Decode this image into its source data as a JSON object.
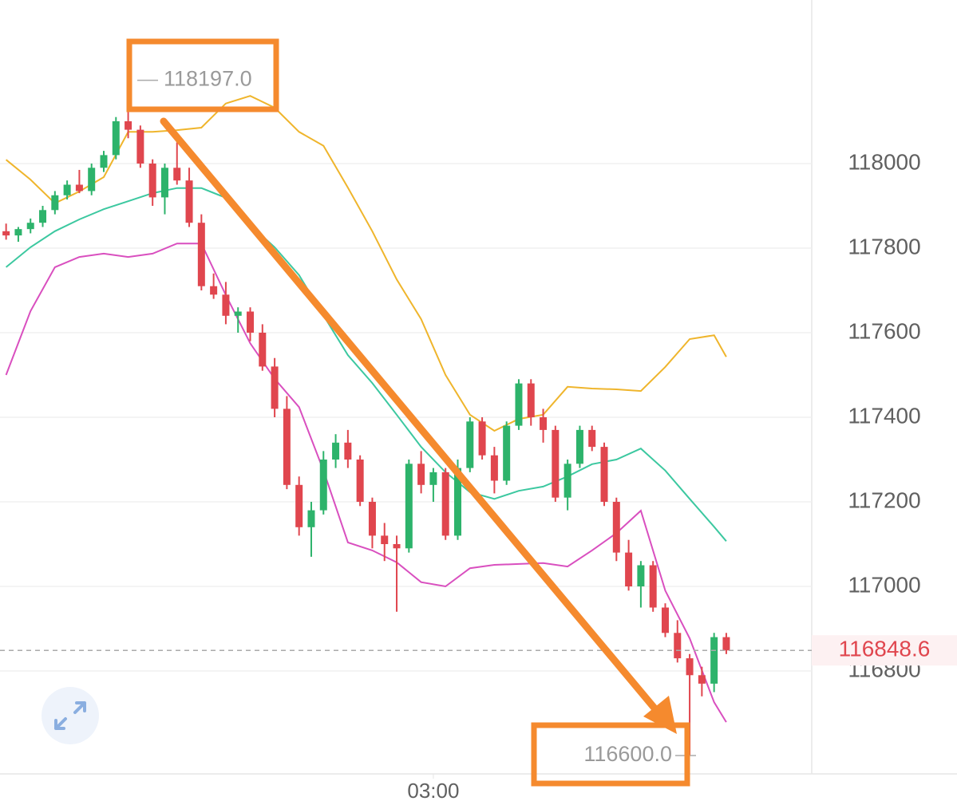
{
  "chart_data": {
    "type": "candlestick",
    "open": [
      117840,
      117830,
      117845,
      117860,
      117890,
      117925,
      117950,
      117935,
      117990,
      118020,
      118100,
      118080,
      118000,
      117920,
      117990,
      117960,
      117860,
      117710,
      117690,
      117640,
      117650,
      117600,
      117520,
      117420,
      117240,
      117140,
      117180,
      117300,
      117340,
      117300,
      117200,
      117120,
      117100,
      117090,
      117290,
      117240,
      117270,
      117120,
      117280,
      117390,
      117310,
      117250,
      117380,
      117480,
      117400,
      117370,
      117210,
      117290,
      117370,
      117330,
      117200,
      117080,
      117000,
      117050,
      116950,
      116890,
      116830,
      116790,
      116770,
      116880
    ],
    "high": [
      117858,
      117850,
      117870,
      117900,
      117935,
      117960,
      117985,
      118000,
      118030,
      118110,
      118197,
      118090,
      118010,
      118000,
      118050,
      117990,
      117880,
      117740,
      117720,
      117660,
      117660,
      117620,
      117540,
      117450,
      117260,
      117200,
      117320,
      117360,
      117370,
      117310,
      117210,
      117150,
      117120,
      117300,
      117320,
      117280,
      117280,
      117300,
      117400,
      117400,
      117330,
      117390,
      117490,
      117490,
      117420,
      117380,
      117300,
      117380,
      117380,
      117340,
      117210,
      117110,
      117060,
      117060,
      116960,
      116920,
      116840,
      116810,
      116890,
      116890
    ],
    "low": [
      117820,
      117815,
      117835,
      117850,
      117880,
      117915,
      117930,
      117925,
      117980,
      118010,
      118060,
      117990,
      117900,
      117880,
      117950,
      117850,
      117700,
      117680,
      117620,
      117600,
      117580,
      117510,
      117400,
      117230,
      117120,
      117070,
      117170,
      117280,
      117280,
      117190,
      117090,
      117060,
      116940,
      117080,
      117220,
      117200,
      117110,
      117110,
      117270,
      117300,
      117220,
      117240,
      117370,
      117380,
      117340,
      117200,
      117180,
      117280,
      117320,
      117190,
      117060,
      116990,
      116950,
      116940,
      116880,
      116820,
      116600,
      116740,
      116750,
      116840
    ],
    "close": [
      117830,
      117845,
      117860,
      117890,
      117925,
      117950,
      117935,
      117990,
      118020,
      118100,
      118080,
      118000,
      117920,
      117990,
      117960,
      117860,
      117710,
      117690,
      117640,
      117650,
      117600,
      117520,
      117420,
      117240,
      117140,
      117180,
      117300,
      117340,
      117300,
      117200,
      117120,
      117100,
      117090,
      117290,
      117240,
      117270,
      117120,
      117280,
      117390,
      117310,
      117250,
      117380,
      117480,
      117400,
      117370,
      117210,
      117290,
      117370,
      117330,
      117200,
      117080,
      117000,
      117050,
      116950,
      116890,
      116830,
      116790,
      116770,
      116880,
      116848.6
    ],
    "up_color": "#2db36b",
    "down_color": "#e0464e",
    "overlay_x": [
      0,
      2,
      4,
      6,
      8,
      10,
      12,
      14,
      16,
      18,
      20,
      22,
      24,
      26,
      28,
      30,
      32,
      34,
      36,
      38,
      40,
      42,
      44,
      46,
      48,
      50,
      52,
      54,
      56,
      58,
      59
    ],
    "overlays": [
      {
        "color": "#efb52c",
        "values": [
          118009,
          117962,
          117906,
          117934,
          117968,
          118075,
          118075,
          118079,
          118085,
          118142,
          118160,
          118132,
          118075,
          118042,
          117943,
          117840,
          117726,
          117632,
          117500,
          117406,
          117368,
          117396,
          117406,
          117472,
          117468,
          117466,
          117462,
          117519,
          117585,
          117594,
          117543
        ]
      },
      {
        "color": "#3cc8a0",
        "values": [
          117755,
          117802,
          117840,
          117868,
          117892,
          117911,
          117930,
          117942,
          117942,
          117919,
          117855,
          117802,
          117736,
          117641,
          117547,
          117481,
          117406,
          117330,
          117270,
          117223,
          117207,
          117226,
          117236,
          117260,
          117289,
          117300,
          117326,
          117274,
          117207,
          117141,
          117107
        ]
      },
      {
        "color": "#d94fbf",
        "values": [
          117500,
          117651,
          117755,
          117779,
          117787,
          117779,
          117787,
          117811,
          117811,
          117689,
          117575,
          117491,
          117424,
          117274,
          117104,
          117085,
          117057,
          117010,
          117000,
          117043,
          117051,
          117053,
          117055,
          117047,
          117085,
          117126,
          117179,
          116990,
          116877,
          116726,
          116679
        ]
      }
    ],
    "xlim": [
      -0.5,
      66
    ],
    "xticks": [
      {
        "value": 35,
        "label": "03:00"
      }
    ],
    "ylim": [
      116556.6,
      118386.8
    ],
    "yticks": [
      116800,
      117000,
      117200,
      117400,
      117600,
      117800,
      118000
    ],
    "grid": true,
    "last_price": {
      "value": 116848.6,
      "label": "116848.6"
    },
    "high_marker": {
      "value": 118197,
      "label": "118197.0"
    },
    "low_marker": {
      "value": 116600,
      "label": "116600.0"
    }
  }
}
